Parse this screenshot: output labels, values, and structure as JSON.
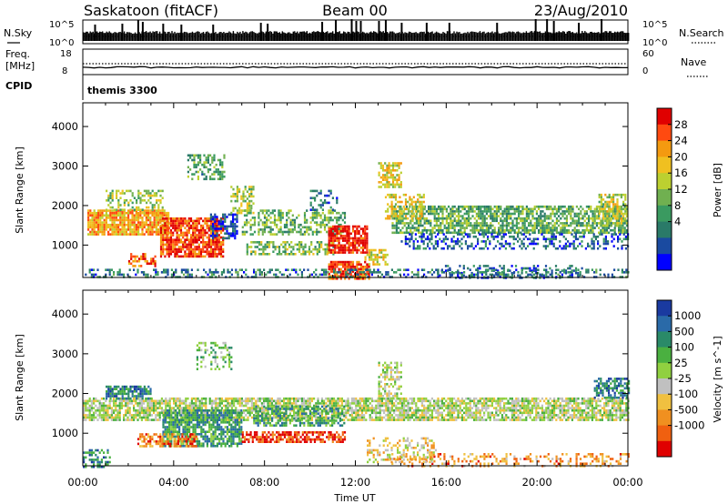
{
  "header": {
    "station": "Saskatoon (fitACF)",
    "beam": "Beam 00",
    "date": "23/Aug/2010"
  },
  "top_panels": {
    "nsky_label": "N.Sky",
    "nsky_scale_top": "10^5",
    "nsky_scale_bottom": "10^0",
    "nsearch_label": "N.Search",
    "nsearch_scale_top": "10^5",
    "nsearch_scale_bottom": "10^0",
    "freq_label_1": "Freq.",
    "freq_label_2": "[MHz]",
    "freq_ticks": [
      "18",
      "8"
    ],
    "nave_label": "Nave",
    "nave_ticks": [
      "60",
      "0"
    ],
    "cpid_label": "CPID",
    "cpid_value": "themis 3300"
  },
  "chart_data": [
    {
      "type": "heatmap",
      "title": "",
      "xlabel": "Time UT",
      "ylabel": "Slant Range [km]",
      "xlim": [
        0,
        24
      ],
      "ylim": [
        180,
        4600
      ],
      "x_ticks": [
        "00:00",
        "04:00",
        "08:00",
        "12:00",
        "16:00",
        "20:00",
        "00:00"
      ],
      "y_ticks": [
        "1000",
        "2000",
        "3000",
        "4000"
      ],
      "colorbar": {
        "label": "Power [dB]",
        "ticks": [
          "28",
          "24",
          "20",
          "16",
          "12",
          "8",
          "4"
        ],
        "colors": [
          "#e00000",
          "#ff4a10",
          "#f49a10",
          "#f0c020",
          "#bcd030",
          "#70b050",
          "#3a9a60",
          "#2a7a68",
          "#1a4aa0",
          "#0000ff"
        ],
        "range": [
          0,
          30
        ]
      },
      "scatter_regions": [
        {
          "t0": 0.2,
          "t1": 3.8,
          "r0": 1300,
          "r1": 1900,
          "level": 0.72,
          "density": 0.85
        },
        {
          "t0": 1.0,
          "t1": 3.5,
          "r0": 1900,
          "r1": 2400,
          "level": 0.5,
          "density": 0.45
        },
        {
          "t0": 3.4,
          "t1": 6.2,
          "r0": 700,
          "r1": 1700,
          "level": 0.88,
          "density": 0.8
        },
        {
          "t0": 2.0,
          "t1": 3.2,
          "r0": 500,
          "r1": 800,
          "level": 0.8,
          "density": 0.5
        },
        {
          "t0": 4.6,
          "t1": 6.2,
          "r0": 2700,
          "r1": 3300,
          "level": 0.35,
          "density": 0.5
        },
        {
          "t0": 5.6,
          "t1": 6.8,
          "r0": 1200,
          "r1": 1800,
          "level": 0.12,
          "density": 0.6
        },
        {
          "t0": 6.5,
          "t1": 7.5,
          "r0": 1800,
          "r1": 2500,
          "level": 0.52,
          "density": 0.5
        },
        {
          "t0": 7.2,
          "t1": 11.0,
          "r0": 800,
          "r1": 1100,
          "level": 0.45,
          "density": 0.55
        },
        {
          "t0": 7.0,
          "t1": 11.5,
          "r0": 1300,
          "r1": 1900,
          "level": 0.42,
          "density": 0.45
        },
        {
          "t0": 10.0,
          "t1": 11.2,
          "r0": 1900,
          "r1": 2400,
          "level": 0.22,
          "density": 0.3
        },
        {
          "t0": 10.8,
          "t1": 12.5,
          "r0": 800,
          "r1": 1500,
          "level": 0.95,
          "density": 0.85
        },
        {
          "t0": 10.8,
          "t1": 12.6,
          "r0": 180,
          "r1": 600,
          "level": 0.88,
          "density": 0.8
        },
        {
          "t0": 12.4,
          "t1": 13.4,
          "r0": 500,
          "r1": 900,
          "level": 0.6,
          "density": 0.55
        },
        {
          "t0": 13.0,
          "t1": 14.0,
          "r0": 2500,
          "r1": 3100,
          "level": 0.62,
          "density": 0.6
        },
        {
          "t0": 13.6,
          "t1": 24.0,
          "r0": 1300,
          "r1": 2000,
          "level": 0.4,
          "density": 0.7
        },
        {
          "t0": 13.3,
          "t1": 15.0,
          "r0": 1700,
          "r1": 2300,
          "level": 0.62,
          "density": 0.5
        },
        {
          "t0": 14.0,
          "t1": 24.0,
          "r0": 900,
          "r1": 1300,
          "level": 0.18,
          "density": 0.4
        },
        {
          "t0": 22.7,
          "t1": 23.9,
          "r0": 1500,
          "r1": 2300,
          "level": 0.55,
          "density": 0.65
        },
        {
          "t0": 15.5,
          "t1": 22.0,
          "r0": 180,
          "r1": 500,
          "level": 0.2,
          "density": 0.3
        },
        {
          "t0": 0.0,
          "t1": 24.0,
          "r0": 180,
          "r1": 400,
          "level": 0.25,
          "density": 0.35
        }
      ]
    },
    {
      "type": "heatmap",
      "title": "",
      "xlabel": "Time UT",
      "ylabel": "Slant Range [km]",
      "xlim": [
        0,
        24
      ],
      "ylim": [
        180,
        4600
      ],
      "x_ticks": [
        "00:00",
        "04:00",
        "08:00",
        "12:00",
        "16:00",
        "20:00",
        "00:00"
      ],
      "y_ticks": [
        "1000",
        "2000",
        "3000",
        "4000"
      ],
      "colorbar": {
        "label": "Velocity [m s^-1]",
        "ticks": [
          "1000",
          "500",
          "100",
          "25",
          "-25",
          "-100",
          "-500",
          "-1000"
        ],
        "colors": [
          "#1a3aa0",
          "#2a6aa8",
          "#2a8a68",
          "#4ab040",
          "#90d040",
          "#c0c0c0",
          "#f0c040",
          "#f09020",
          "#f06010",
          "#e00000"
        ],
        "range": [
          -1000,
          1000
        ]
      },
      "scatter_regions": [
        {
          "t0": 0.0,
          "t1": 24.0,
          "r0": 1350,
          "r1": 1900,
          "level": 0.5,
          "density": 0.75
        },
        {
          "t0": 1.0,
          "t1": 3.0,
          "r0": 1900,
          "r1": 2200,
          "level": 0.78,
          "density": 0.7
        },
        {
          "t0": 3.5,
          "t1": 7.0,
          "r0": 700,
          "r1": 1600,
          "level": 0.72,
          "density": 0.75
        },
        {
          "t0": 2.4,
          "t1": 5.0,
          "r0": 650,
          "r1": 1000,
          "level": 0.2,
          "density": 0.6
        },
        {
          "t0": 7.0,
          "t1": 11.5,
          "r0": 800,
          "r1": 1050,
          "level": 0.08,
          "density": 0.7
        },
        {
          "t0": 7.5,
          "t1": 11.5,
          "r0": 1200,
          "r1": 1700,
          "level": 0.7,
          "density": 0.55
        },
        {
          "t0": 5.0,
          "t1": 6.5,
          "r0": 2600,
          "r1": 3300,
          "level": 0.6,
          "density": 0.3
        },
        {
          "t0": 13.5,
          "t1": 24.0,
          "r0": 180,
          "r1": 500,
          "level": 0.25,
          "density": 0.3
        },
        {
          "t0": 12.5,
          "t1": 15.5,
          "r0": 300,
          "r1": 900,
          "level": 0.4,
          "density": 0.35
        },
        {
          "t0": 22.5,
          "t1": 24.0,
          "r0": 1900,
          "r1": 2400,
          "level": 0.78,
          "density": 0.6
        },
        {
          "t0": 13.0,
          "t1": 14.0,
          "r0": 1900,
          "r1": 2800,
          "level": 0.5,
          "density": 0.5
        },
        {
          "t0": 0.0,
          "t1": 1.2,
          "r0": 180,
          "r1": 600,
          "level": 0.78,
          "density": 0.5
        }
      ]
    }
  ]
}
